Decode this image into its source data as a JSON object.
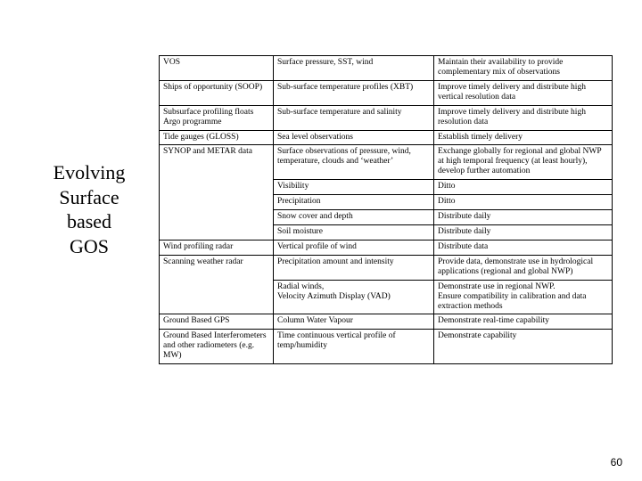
{
  "title_lines": [
    "Evolving",
    "Surface",
    "based",
    "GOS"
  ],
  "page_number": "60",
  "table": {
    "rows": [
      {
        "id": "r1",
        "c1": "VOS",
        "c2": "Surface pressure, SST, wind",
        "c3": "Maintain their availability to provide complementary mix of observations",
        "c1_open_bottom": false,
        "c1_open_top": false
      },
      {
        "id": "r2",
        "c1": "Ships of opportunity (SOOP)",
        "c2": "Sub-surface temperature profiles (XBT)",
        "c3": "Improve timely delivery and distribute high vertical resolution data"
      },
      {
        "id": "r3",
        "c1": "Subsurface profiling floats Argo programme",
        "c2": "Sub-surface temperature and salinity",
        "c3": "Improve timely delivery and distribute high resolution data"
      },
      {
        "id": "r4",
        "c1": "Tide gauges (GLOSS)",
        "c2": "Sea level observations",
        "c3": "Establish timely delivery"
      },
      {
        "id": "r5",
        "c1": "SYNOP and METAR data",
        "c2": "Surface observations of pressure, wind, temperature, clouds and ‘weather’",
        "c3": "Exchange globally for regional and global NWP at high temporal frequency (at least hourly), develop further automation",
        "c1_open_bottom": true
      },
      {
        "id": "r6",
        "c1": "",
        "c2": "Visibility",
        "c3": "Ditto",
        "c1_open_top": true,
        "c1_open_bottom": true
      },
      {
        "id": "r7",
        "c1": "",
        "c2": "Precipitation",
        "c3": "Ditto",
        "c1_open_top": true,
        "c1_open_bottom": true
      },
      {
        "id": "r8",
        "c1": "",
        "c2": "Snow cover and depth",
        "c3": "Distribute daily",
        "c1_open_top": true,
        "c1_open_bottom": true
      },
      {
        "id": "r9",
        "c1": "",
        "c2": "Soil moisture",
        "c3": "Distribute daily",
        "c1_open_top": true
      },
      {
        "id": "r10",
        "c1": "Wind profiling radar",
        "c2": "Vertical profile of wind",
        "c3": "Distribute data"
      },
      {
        "id": "r11",
        "c1": "Scanning weather radar",
        "c2": "Precipitation amount and intensity",
        "c3": "Provide data, demonstrate use in hydrological applications (regional and global NWP)",
        "c1_open_bottom": true
      },
      {
        "id": "r12",
        "c1": "",
        "c2": "Radial winds,\nVelocity Azimuth Display (VAD)",
        "c3": "Demonstrate use in regional NWP.\nEnsure compatibility in calibration and data extraction methods",
        "c1_open_top": true
      },
      {
        "id": "r13",
        "c1": "Ground Based GPS",
        "c2": "Column Water Vapour",
        "c3": "Demonstrate real-time capability"
      },
      {
        "id": "r14",
        "c1": "Ground Based Interferometers and other radiometers (e.g. MW)",
        "c2": "Time continuous vertical profile of temp/humidity",
        "c3": "Demonstrate capability"
      }
    ]
  }
}
